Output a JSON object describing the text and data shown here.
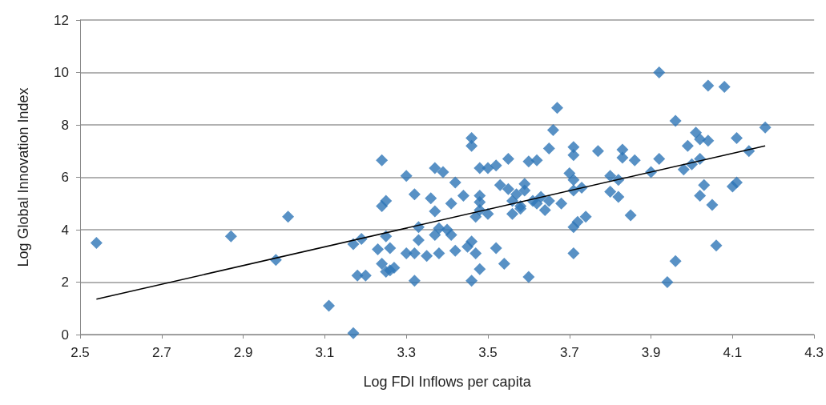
{
  "chart_data": {
    "type": "scatter",
    "xlabel": "Log FDI Inflows per capita",
    "ylabel": "Log Global Innovation Index",
    "xlim": [
      2.5,
      4.3
    ],
    "xticks": [
      2.5,
      2.7,
      2.9,
      3.1,
      3.3,
      3.5,
      3.7,
      3.9,
      4.1,
      4.3
    ],
    "ylim": [
      0,
      12
    ],
    "yticks": [
      0,
      2,
      4,
      6,
      8,
      10,
      12
    ],
    "grid": "y",
    "marker": "diamond",
    "series": [
      {
        "color": "#2e75b6",
        "x": [
          2.54,
          2.87,
          2.98,
          3.01,
          3.11,
          3.17,
          3.17,
          3.19,
          3.18,
          3.2,
          3.24,
          3.24,
          3.25,
          3.25,
          3.23,
          3.24,
          3.25,
          3.26,
          3.27,
          3.26,
          3.3,
          3.3,
          3.32,
          3.32,
          3.33,
          3.33,
          3.32,
          3.35,
          3.36,
          3.37,
          3.37,
          3.39,
          3.37,
          3.38,
          3.38,
          3.4,
          3.41,
          3.41,
          3.42,
          3.42,
          3.44,
          3.45,
          3.46,
          3.46,
          3.46,
          3.47,
          3.46,
          3.48,
          3.47,
          3.48,
          3.48,
          3.48,
          3.48,
          3.5,
          3.5,
          3.52,
          3.52,
          3.53,
          3.54,
          3.55,
          3.55,
          3.56,
          3.56,
          3.57,
          3.58,
          3.58,
          3.59,
          3.59,
          3.6,
          3.6,
          3.61,
          3.62,
          3.62,
          3.63,
          3.64,
          3.65,
          3.65,
          3.66,
          3.67,
          3.68,
          3.7,
          3.71,
          3.71,
          3.71,
          3.71,
          3.71,
          3.71,
          3.72,
          3.73,
          3.74,
          3.77,
          3.8,
          3.8,
          3.82,
          3.82,
          3.83,
          3.83,
          3.85,
          3.86,
          3.9,
          3.92,
          3.92,
          3.94,
          3.96,
          3.96,
          3.98,
          3.99,
          4.0,
          4.01,
          4.02,
          4.02,
          4.02,
          4.03,
          4.04,
          4.04,
          4.05,
          4.06,
          4.08,
          4.1,
          4.11,
          4.11,
          4.14,
          4.18
        ],
        "values": [
          3.5,
          3.75,
          2.85,
          4.5,
          1.1,
          0.05,
          3.45,
          3.65,
          2.25,
          2.25,
          6.65,
          4.9,
          5.1,
          3.75,
          3.25,
          2.7,
          2.4,
          2.45,
          2.55,
          3.3,
          6.05,
          3.1,
          5.35,
          2.05,
          4.1,
          3.6,
          3.1,
          3.0,
          5.2,
          4.7,
          6.35,
          6.2,
          3.8,
          4.05,
          3.1,
          4.0,
          3.8,
          5.0,
          3.2,
          5.8,
          5.3,
          3.35,
          7.5,
          7.2,
          3.55,
          3.1,
          2.05,
          2.5,
          4.5,
          4.75,
          5.05,
          5.3,
          6.35,
          6.35,
          4.6,
          6.45,
          3.3,
          5.7,
          2.7,
          6.7,
          5.55,
          4.6,
          5.1,
          5.35,
          4.9,
          4.8,
          5.5,
          5.75,
          6.6,
          2.2,
          5.1,
          6.65,
          5.0,
          5.25,
          4.75,
          7.1,
          5.1,
          7.8,
          8.65,
          5.0,
          6.15,
          7.15,
          6.85,
          5.9,
          5.5,
          4.1,
          3.1,
          4.3,
          5.6,
          4.5,
          7.0,
          6.05,
          5.45,
          5.9,
          5.25,
          7.05,
          6.75,
          4.55,
          6.65,
          6.2,
          10.0,
          6.7,
          2.0,
          8.15,
          2.8,
          6.3,
          7.2,
          6.5,
          7.7,
          7.45,
          6.7,
          5.3,
          5.7,
          7.4,
          9.5,
          4.95,
          3.4,
          9.45,
          5.65,
          7.5,
          5.8,
          7.0,
          7.9
        ]
      },
      {
        "type": "line",
        "color": "#000000",
        "x": [
          2.54,
          4.18
        ],
        "values": [
          1.35,
          7.2
        ],
        "marker": "none"
      }
    ]
  }
}
